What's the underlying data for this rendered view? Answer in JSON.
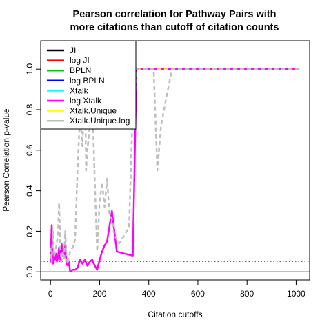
{
  "chart_data": {
    "type": "line",
    "title_lines": [
      "Pearson correlation for Pathway Pairs with",
      "more citations than cutoff of citation counts"
    ],
    "xlabel": "Citation cutoffs",
    "ylabel": "Pearson Correlation p-value",
    "xlim": [
      -40,
      1055
    ],
    "ylim": [
      -0.04,
      1.14
    ],
    "xticks": [
      0,
      200,
      400,
      600,
      800,
      1000
    ],
    "yticks": [
      0.0,
      0.2,
      0.4,
      0.6,
      0.8,
      1.0
    ],
    "ytick_labels": [
      "0.0",
      "0.2",
      "0.4",
      "0.6",
      "0.8",
      "1.0"
    ],
    "hlines": [
      {
        "y": 0.05,
        "color": "#666666",
        "style": "dotted"
      },
      {
        "y": 0.0,
        "color": "#000000",
        "style": "solid"
      }
    ],
    "legend_position": "top-left",
    "series": [
      {
        "name": "JI",
        "color": "#000000",
        "style": "solid",
        "width": 2,
        "x": [
          350,
          1010
        ],
        "y": [
          1.0,
          1.0
        ]
      },
      {
        "name": "log JI",
        "color": "#ff0000",
        "style": "solid",
        "width": 2,
        "x": [
          350,
          1010
        ],
        "y": [
          1.0,
          1.0
        ]
      },
      {
        "name": "BPLN",
        "color": "#00cd00",
        "style": "solid",
        "width": 2,
        "x": [
          350,
          1010
        ],
        "y": [
          1.0,
          1.0
        ]
      },
      {
        "name": "log BPLN",
        "color": "#0000ff",
        "style": "solid",
        "width": 2,
        "x": [
          350,
          1010
        ],
        "y": [
          1.0,
          1.0
        ]
      },
      {
        "name": "Xtalk",
        "color": "#00ffff",
        "style": "solid",
        "width": 2,
        "x": [
          350,
          1010
        ],
        "y": [
          1.0,
          1.0
        ]
      },
      {
        "name": "log Xtalk",
        "color": "#ff00ff",
        "style": "solid",
        "width": 2.5,
        "x": [
          0,
          5,
          10,
          14,
          18,
          22,
          26,
          30,
          35,
          40,
          45,
          50,
          55,
          60,
          65,
          70,
          75,
          80,
          90,
          100,
          110,
          120,
          130,
          140,
          150,
          160,
          170,
          180,
          190,
          200,
          210,
          220,
          230,
          250,
          270,
          300,
          335,
          350,
          360,
          400,
          450,
          500,
          600,
          700,
          800,
          900,
          1000,
          1010
        ],
        "y": [
          0.05,
          0.23,
          0.04,
          0.08,
          0.06,
          0.09,
          0.05,
          0.07,
          0.12,
          0.06,
          0.14,
          0.08,
          0.07,
          0.13,
          0.04,
          0.03,
          0.05,
          0.0,
          0.01,
          0.01,
          0.02,
          0.06,
          0.04,
          0.06,
          0.03,
          0.05,
          0.06,
          0.03,
          0.01,
          0.06,
          0.1,
          0.13,
          0.15,
          0.3,
          0.1,
          0.09,
          0.08,
          1.0,
          1.0,
          1.0,
          1.0,
          1.0,
          1.0,
          1.0,
          1.0,
          1.0,
          1.0,
          1.0
        ]
      },
      {
        "name": "Xtalk.Unique",
        "color": "#ffff00",
        "style": "dashed",
        "width": 2,
        "x": [
          350,
          400,
          500,
          600,
          700,
          800,
          900,
          1010
        ],
        "y": [
          1.0,
          1.0,
          1.0,
          1.0,
          1.0,
          1.0,
          1.0,
          1.0
        ]
      },
      {
        "name": "Xtalk.Unique.log",
        "color": "#bebebe",
        "style": "dashed",
        "width": 2.5,
        "x": [
          0,
          5,
          10,
          15,
          20,
          25,
          30,
          35,
          40,
          45,
          50,
          55,
          60,
          65,
          70,
          80,
          90,
          100,
          110,
          120,
          130,
          140,
          145,
          150,
          160,
          170,
          180,
          190,
          200,
          210,
          220,
          230,
          240,
          250,
          260,
          270,
          280,
          300,
          320,
          335,
          340,
          350,
          360,
          380,
          400,
          420,
          435,
          450,
          470,
          495,
          520,
          600,
          700,
          800,
          900,
          1010
        ],
        "y": [
          0.12,
          0.05,
          0.2,
          0.08,
          0.1,
          0.14,
          0.18,
          0.34,
          0.12,
          0.05,
          0.1,
          0.06,
          0.2,
          0.08,
          0.04,
          0.1,
          0.12,
          0.16,
          0.5,
          0.78,
          0.62,
          0.95,
          0.5,
          0.6,
          0.72,
          0.85,
          0.45,
          0.1,
          0.35,
          0.44,
          0.32,
          0.46,
          0.28,
          0.26,
          0.18,
          0.16,
          0.14,
          0.18,
          0.22,
          0.82,
          0.75,
          1.0,
          1.0,
          1.0,
          1.0,
          1.0,
          0.5,
          0.72,
          0.85,
          1.0,
          1.0,
          1.0,
          1.0,
          1.0,
          1.0,
          1.0
        ]
      }
    ]
  }
}
